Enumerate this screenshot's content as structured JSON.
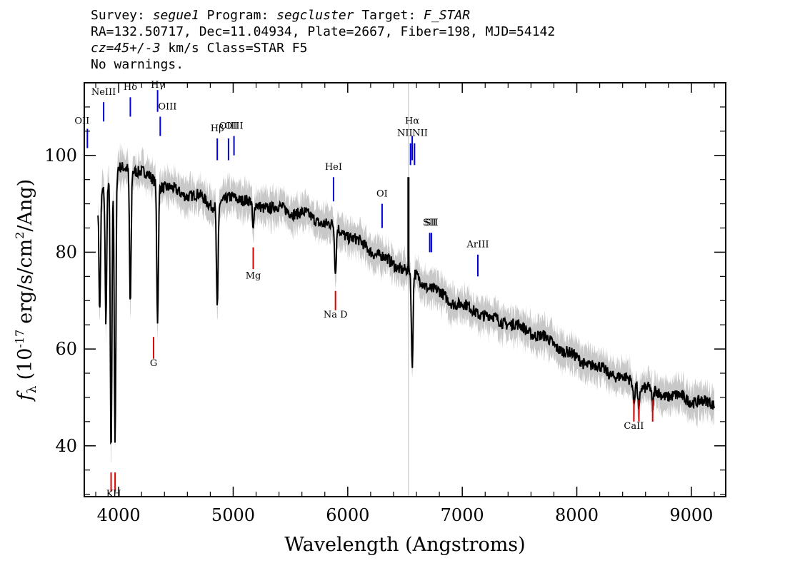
{
  "header": {
    "line1": {
      "survey_label": "Survey:",
      "survey": "segue1",
      "program_label": "Program:",
      "program": "segcluster",
      "target_label": "Target:",
      "target": "F_STAR"
    },
    "line2": "RA=132.50717, Dec=11.04934, Plate=2667, Fiber=198, MJD=54142",
    "line3": {
      "cz": "cz=45+/-3",
      "rest": "km/s Class=STAR F5"
    },
    "line4": "No warnings."
  },
  "chart_data": {
    "type": "line",
    "xlabel": "Wavelength (Angstroms)",
    "ylabel_prefix": "f",
    "ylabel_sub": "λ",
    "ylabel_main": "(10",
    "ylabel_exp": "-17",
    "ylabel_unit": "erg/s/cm",
    "ylabel_sq": "2",
    "ylabel_end": "/Ang)",
    "xlim": [
      3700,
      9300
    ],
    "ylim": [
      29.5,
      115
    ],
    "xticks": [
      4000,
      5000,
      6000,
      7000,
      8000,
      9000
    ],
    "yticks": [
      40,
      60,
      80,
      100
    ],
    "vertical_reference_x": 6530,
    "colors": {
      "spectrum": "#000000",
      "error_band": "#c8c8c8",
      "emission": "#0000dd",
      "absorption": "#dd0000",
      "axis": "#000000"
    },
    "continuum": [
      [
        3820,
        91
      ],
      [
        3900,
        95
      ],
      [
        4000,
        97
      ],
      [
        4100,
        97.5
      ],
      [
        4200,
        96.5
      ],
      [
        4300,
        95
      ],
      [
        4400,
        93.5
      ],
      [
        4500,
        92.5
      ],
      [
        4600,
        92
      ],
      [
        4700,
        91.5
      ],
      [
        4800,
        90
      ],
      [
        4900,
        90
      ],
      [
        5000,
        91.5
      ],
      [
        5100,
        91
      ],
      [
        5200,
        89.5
      ],
      [
        5300,
        89.5
      ],
      [
        5400,
        89
      ],
      [
        5500,
        88.5
      ],
      [
        5600,
        88
      ],
      [
        5700,
        87
      ],
      [
        5800,
        86
      ],
      [
        5900,
        85
      ],
      [
        6000,
        83.5
      ],
      [
        6100,
        82
      ],
      [
        6200,
        80.5
      ],
      [
        6300,
        79
      ],
      [
        6400,
        77.5
      ],
      [
        6500,
        76.5
      ],
      [
        6600,
        75
      ],
      [
        6700,
        73
      ],
      [
        6800,
        71.5
      ],
      [
        6900,
        70
      ],
      [
        7000,
        69
      ],
      [
        7100,
        68
      ],
      [
        7200,
        67
      ],
      [
        7300,
        66
      ],
      [
        7400,
        65.5
      ],
      [
        7500,
        64.5
      ],
      [
        7600,
        63.5
      ],
      [
        7700,
        62.5
      ],
      [
        7800,
        61
      ],
      [
        7900,
        59.5
      ],
      [
        8000,
        58
      ],
      [
        8100,
        57
      ],
      [
        8200,
        56
      ],
      [
        8300,
        55
      ],
      [
        8400,
        54
      ],
      [
        8500,
        53
      ],
      [
        8600,
        52
      ],
      [
        8700,
        51
      ],
      [
        8800,
        50.5
      ],
      [
        8900,
        50
      ],
      [
        9000,
        49.5
      ],
      [
        9100,
        49
      ],
      [
        9200,
        48.5
      ]
    ],
    "absorption_features": [
      {
        "x": 3835,
        "depth": 24
      },
      {
        "x": 3889,
        "depth": 28
      },
      {
        "x": 3934,
        "depth": 58
      },
      {
        "x": 3969,
        "depth": 56
      },
      {
        "x": 4102,
        "depth": 28
      },
      {
        "x": 4340,
        "depth": 28
      },
      {
        "x": 4861,
        "depth": 22
      },
      {
        "x": 5175,
        "depth": 6
      },
      {
        "x": 5893,
        "depth": 10
      },
      {
        "x": 6563,
        "depth": 20
      },
      {
        "x": 8498,
        "depth": 4
      },
      {
        "x": 8542,
        "depth": 5
      },
      {
        "x": 8662,
        "depth": 4
      }
    ],
    "spike": {
      "x": 6530,
      "y": 95.5
    },
    "emission_lines": [
      {
        "label": "OII",
        "x": 3727,
        "y1": 101.5,
        "y2": 105.5,
        "ly": 106.5,
        "color": "blue",
        "anchor": "end"
      },
      {
        "label": "NeIII",
        "x": 3869,
        "y1": 107,
        "y2": 111,
        "ly": 112.5,
        "color": "blue"
      },
      {
        "label": "Hδ",
        "x": 4102,
        "y1": 108,
        "y2": 112,
        "ly": 113.5,
        "color": "blue"
      },
      {
        "label": "Hγ",
        "x": 4340,
        "y1": 109,
        "y2": 113.5,
        "ly": 114,
        "color": "blue"
      },
      {
        "label": "OIII",
        "x": 4363,
        "y1": 104,
        "y2": 108,
        "ly": 109.5,
        "color": "blue",
        "anchor": "start"
      },
      {
        "label": "Hβ",
        "x": 4861,
        "y1": 99,
        "y2": 103.5,
        "ly": 105,
        "color": "blue"
      },
      {
        "label": "OIII",
        "x": 4959,
        "y1": 99,
        "y2": 103.5,
        "ly": 105.5,
        "color": "blue"
      },
      {
        "label": "OIII",
        "x": 5007,
        "y1": 100,
        "y2": 104,
        "ly": 105.5,
        "color": "blue"
      },
      {
        "label": "HeI",
        "x": 5876,
        "y1": 90.5,
        "y2": 95.5,
        "ly": 97,
        "color": "blue"
      },
      {
        "label": "OI",
        "x": 6300,
        "y1": 85,
        "y2": 90,
        "ly": 91.5,
        "color": "blue"
      },
      {
        "label": "NII",
        "x": 6548,
        "y1": 98,
        "y2": 102.5,
        "ly": 104,
        "color": "blue",
        "anchor": "end"
      },
      {
        "label": "Hα",
        "x": 6563,
        "y1": 99,
        "y2": 104,
        "ly": 106.5,
        "color": "blue"
      },
      {
        "label": "NII",
        "x": 6583,
        "y1": 98,
        "y2": 102.5,
        "ly": 104,
        "color": "blue",
        "anchor": "start"
      },
      {
        "label": "SII",
        "x": 6716,
        "y1": 80,
        "y2": 84,
        "ly": 85.5,
        "color": "blue"
      },
      {
        "label": "SII",
        "x": 6731,
        "y1": 80,
        "y2": 84,
        "ly": 85.5,
        "color": "blue"
      },
      {
        "label": "ArIII",
        "x": 7136,
        "y1": 75,
        "y2": 79.5,
        "ly": 81,
        "color": "blue"
      }
    ],
    "absorption_lines": [
      {
        "label": "K",
        "x": 3934,
        "y1": 30.5,
        "y2": 34.5,
        "ly": 29.5,
        "color": "red",
        "anchor": "end"
      },
      {
        "label": "H",
        "x": 3969,
        "y1": 30.5,
        "y2": 34.5,
        "ly": 29.5,
        "color": "red",
        "anchor": "start"
      },
      {
        "label": "G",
        "x": 4305,
        "y1": 58,
        "y2": 62.5,
        "ly": 56.5,
        "color": "red"
      },
      {
        "label": "Mg",
        "x": 5175,
        "y1": 76.5,
        "y2": 81,
        "ly": 74.5,
        "color": "red"
      },
      {
        "label": "Na D",
        "x": 5893,
        "y1": 68,
        "y2": 72,
        "ly": 66.5,
        "color": "red"
      },
      {
        "label": "CaII",
        "x": 8498,
        "y1": 45,
        "y2": 49.5,
        "ly": 43.5,
        "color": "red"
      },
      {
        "label": "CaII",
        "x": 8542,
        "y1": 45,
        "y2": 49.5,
        "ly": 43.5,
        "color": "red",
        "hide_label": true
      },
      {
        "label": "CaII",
        "x": 8662,
        "y1": 45,
        "y2": 49.5,
        "ly": 43.5,
        "color": "red",
        "hide_label": true
      }
    ]
  }
}
